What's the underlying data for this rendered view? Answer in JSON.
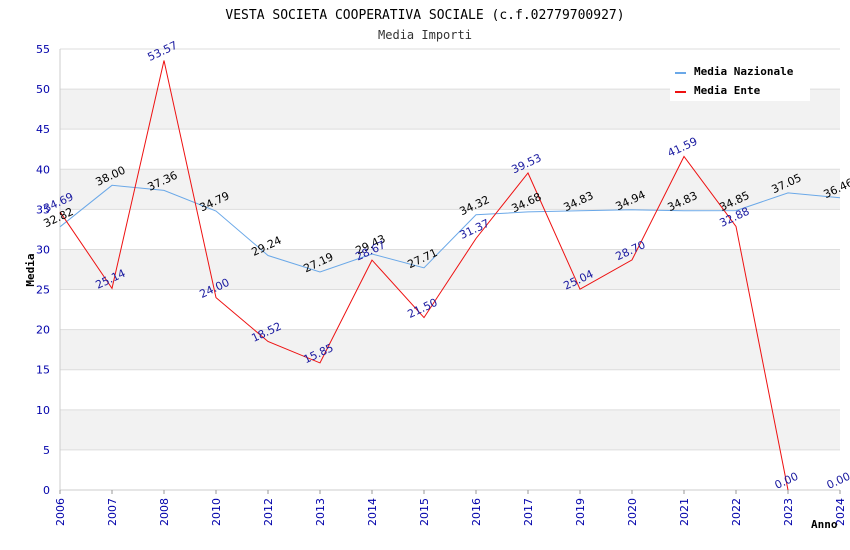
{
  "chart_data": {
    "type": "line",
    "title": "VESTA SOCIETA COOPERATIVA SOCIALE (c.f.02779700927)",
    "subtitle": "Media Importi",
    "xlabel": "Anno",
    "ylabel": "Media",
    "ylim": [
      0,
      55
    ],
    "yticks": [
      "0",
      "5",
      "10",
      "15",
      "20",
      "25",
      "30",
      "35",
      "40",
      "45",
      "50",
      "55"
    ],
    "categories": [
      "2006",
      "2007",
      "2008",
      "2010",
      "2012",
      "2013",
      "2014",
      "2015",
      "2016",
      "2017",
      "2019",
      "2020",
      "2021",
      "2022",
      "2023",
      "2024"
    ],
    "grid": true,
    "legend_position": "top-right",
    "series": [
      {
        "name": "Media Nazionale",
        "color": "#6aa8e8",
        "label_color": "#000000",
        "values": [
          32.82,
          38.0,
          37.36,
          34.79,
          29.24,
          27.19,
          29.43,
          27.71,
          34.32,
          34.68,
          34.83,
          34.94,
          34.83,
          34.85,
          37.05,
          36.46
        ],
        "labels": [
          "32.82",
          "38.00",
          "37.36",
          "34.79",
          "29.24",
          "27.19",
          "29.43",
          "27.71",
          "34.32",
          "34.68",
          "34.83",
          "34.94",
          "34.83",
          "34.85",
          "37.05",
          "36.46"
        ]
      },
      {
        "name": "Media Ente",
        "color": "#ee1111",
        "label_color": "#1a1aa0",
        "values": [
          34.69,
          25.14,
          53.57,
          24.0,
          18.52,
          15.85,
          28.67,
          21.5,
          31.37,
          39.53,
          25.04,
          28.7,
          41.59,
          32.88,
          0.0,
          null
        ],
        "labels": [
          "34.69",
          "25.14",
          "53.57",
          "24.00",
          "18.52",
          "15.85",
          "28.67",
          "21.50",
          "31.37",
          "39.53",
          "25.04",
          "28.70",
          "41.59",
          "32.88",
          "0.00",
          "0.00"
        ]
      }
    ]
  }
}
